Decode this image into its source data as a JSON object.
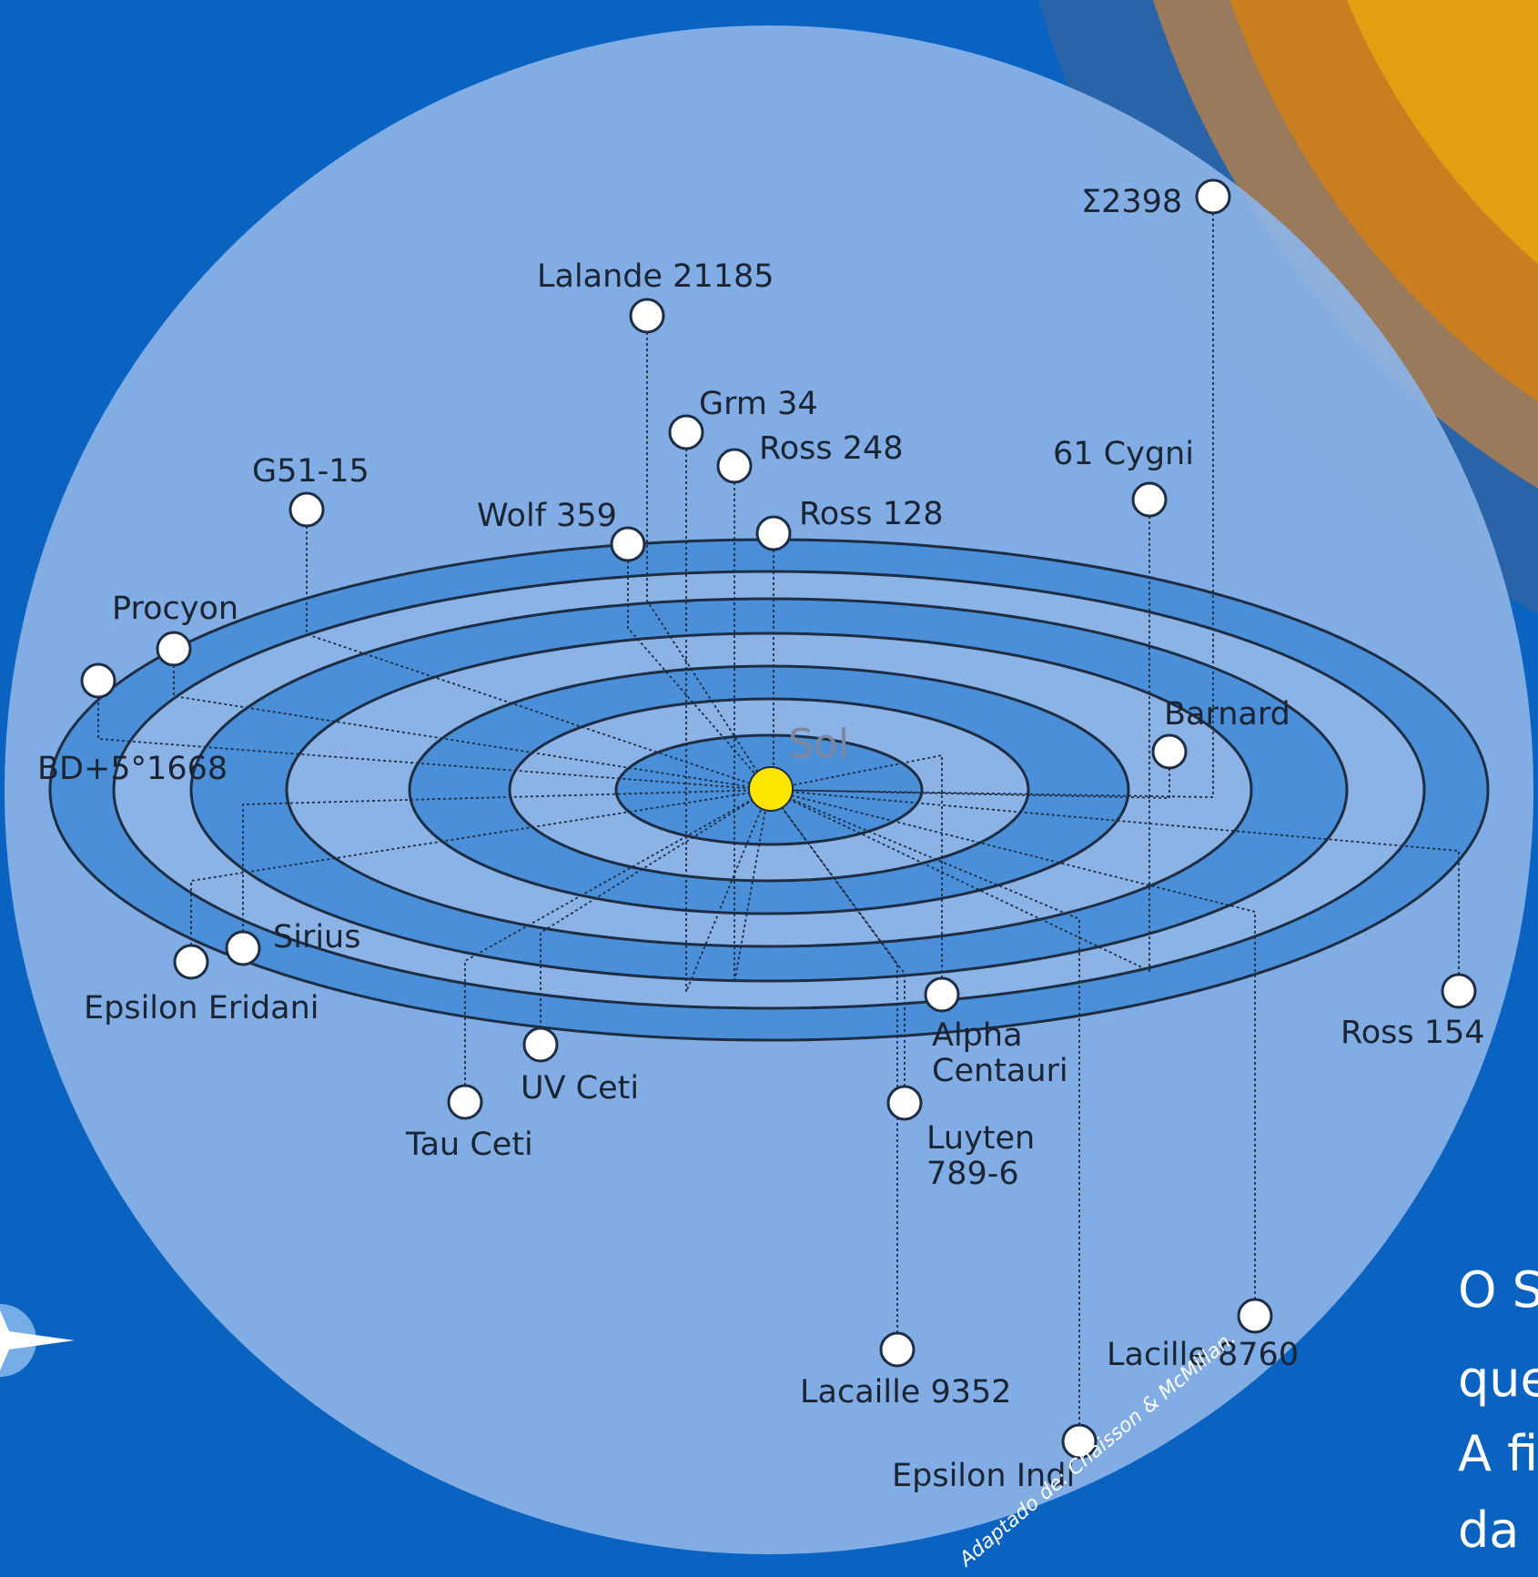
{
  "diagram": {
    "sun_label": "Sol",
    "credit": "Adaptado de: Chaisson & McMillan.",
    "side_text": [
      "O S",
      "que",
      "A fi",
      "da"
    ],
    "colors": {
      "background": "#0a63c0",
      "sphere": "#8bb3e6",
      "ring_band": "#4a8fd8",
      "ring_outline": "#1d2d44",
      "sun": "#ffe600",
      "star_fill": "#ffffff",
      "orange_arc": "#e39a0f"
    },
    "stars": [
      {
        "name": "Σ2398"
      },
      {
        "name": "Lalande 21185"
      },
      {
        "name": "Grm 34"
      },
      {
        "name": "Ross 248"
      },
      {
        "name": "61 Cygni"
      },
      {
        "name": "G51-15"
      },
      {
        "name": "Wolf 359"
      },
      {
        "name": "Ross 128"
      },
      {
        "name": "Procyon"
      },
      {
        "name": "BD+5°1668"
      },
      {
        "name": "Barnard"
      },
      {
        "name": "Sirius"
      },
      {
        "name": "Epsilon Eridani"
      },
      {
        "name": "Alpha Centauri"
      },
      {
        "name": "Ross 154"
      },
      {
        "name": "UV Ceti"
      },
      {
        "name": "Tau Ceti"
      },
      {
        "name": "Luyten 789-6"
      },
      {
        "name": "Lacille 8760"
      },
      {
        "name": "Lacaille 9352"
      },
      {
        "name": "Epsilon Indi"
      }
    ]
  }
}
